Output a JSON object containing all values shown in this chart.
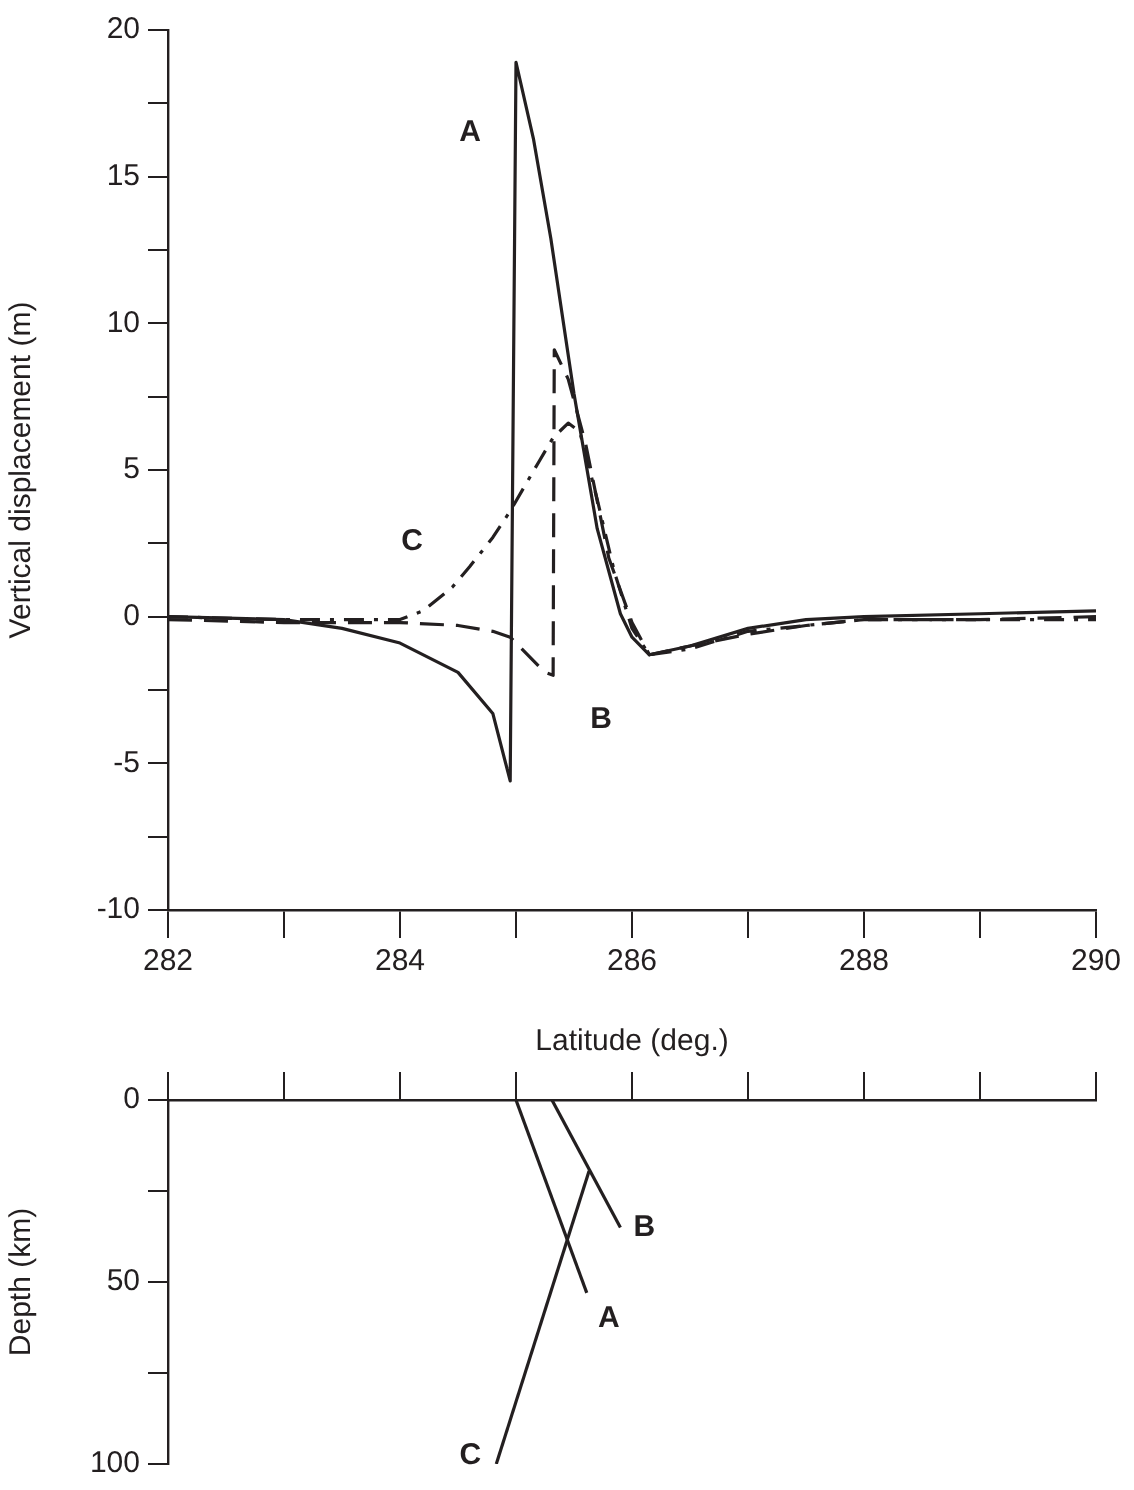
{
  "chart_data": [
    {
      "type": "line",
      "xlabel": "Latitude (deg.)",
      "ylabel": "Vertical displacement (m)",
      "xlim": [
        282,
        290
      ],
      "ylim": [
        -10,
        20
      ],
      "xticks": [
        282,
        {
          "value": 283,
          "label": null
        },
        284,
        {
          "value": 285,
          "label": null
        },
        286,
        {
          "value": 287,
          "label": null
        },
        288,
        {
          "value": 289,
          "label": null
        },
        290
      ],
      "yticks": [
        -10,
        {
          "value": -7.5,
          "label": null
        },
        -5,
        {
          "value": -2.5,
          "label": null
        },
        0,
        {
          "value": 2.5,
          "label": null
        },
        5,
        {
          "value": 7.5,
          "label": null
        },
        10,
        {
          "value": 12.5,
          "label": null
        },
        15,
        {
          "value": 17.5,
          "label": null
        },
        20
      ],
      "grid": false,
      "legend": false,
      "marker": "none",
      "series": [
        {
          "name": "A",
          "color": "#231f20",
          "line_style": "solid",
          "x": [
            282,
            283,
            283.5,
            284,
            284.5,
            284.8,
            284.95,
            285.0,
            285.15,
            285.3,
            285.5,
            285.7,
            285.9,
            286.0,
            286.15,
            286.5,
            287,
            287.5,
            288,
            289,
            290
          ],
          "values": [
            0,
            -0.1,
            -0.4,
            -0.9,
            -1.9,
            -3.3,
            -5.6,
            18.9,
            16.3,
            12.9,
            7.6,
            3.0,
            0.1,
            -0.7,
            -1.3,
            -1.0,
            -0.4,
            -0.1,
            0,
            0.1,
            0.2
          ]
        },
        {
          "name": "B",
          "color": "#231f20",
          "line_style": "dashed",
          "x": [
            282,
            283,
            284,
            284.5,
            284.8,
            284.95,
            285.05,
            285.25,
            285.32,
            285.33,
            285.45,
            285.6,
            285.8,
            286.0,
            286.15,
            286.5,
            287,
            287.5,
            288,
            289,
            290
          ],
          "values": [
            -0.1,
            -0.2,
            -0.2,
            -0.3,
            -0.5,
            -0.7,
            -1.1,
            -1.9,
            -2.0,
            9.1,
            8.1,
            5.9,
            2.0,
            -0.2,
            -1.3,
            -1.0,
            -0.6,
            -0.3,
            -0.1,
            -0.1,
            0
          ]
        },
        {
          "name": "C",
          "color": "#231f20",
          "line_style": "dotted",
          "x": [
            282,
            283,
            284,
            284.2,
            284.45,
            284.6,
            284.8,
            284.95,
            285.2,
            285.32,
            285.45,
            285.55,
            285.7,
            285.85,
            286.0,
            286.15,
            286.5,
            287,
            288,
            289,
            290
          ],
          "values": [
            0,
            -0.1,
            -0.1,
            0.2,
            1.0,
            1.7,
            2.7,
            3.6,
            5.3,
            6.1,
            6.6,
            6.3,
            4.0,
            1.5,
            -0.4,
            -1.3,
            -1.1,
            -0.5,
            -0.1,
            -0.1,
            -0.1
          ]
        }
      ]
    },
    {
      "type": "line",
      "ylabel": "Depth (km)",
      "xlim": [
        282,
        290
      ],
      "ylim": [
        100,
        0
      ],
      "tick_labels": "y",
      "xticks": [
        282,
        283,
        284,
        285,
        286,
        287,
        288,
        289,
        290
      ],
      "yticks": [
        0,
        {
          "value": 25,
          "label": null
        },
        50,
        {
          "value": 75,
          "label": null
        },
        100
      ],
      "grid": false,
      "legend": false,
      "marker": "none",
      "series": [
        {
          "name": "A",
          "color": "#231f20",
          "line_style": "solid",
          "x": [
            285.0,
            285.61
          ],
          "values": [
            0,
            53
          ]
        },
        {
          "name": "B",
          "color": "#231f20",
          "line_style": "solid",
          "x": [
            285.31,
            285.9
          ],
          "values": [
            0,
            35
          ]
        },
        {
          "name": "C",
          "color": "#231f20",
          "line_style": "solid",
          "x": [
            284.83,
            285.63
          ],
          "values": [
            100,
            19.5
          ]
        }
      ]
    }
  ]
}
